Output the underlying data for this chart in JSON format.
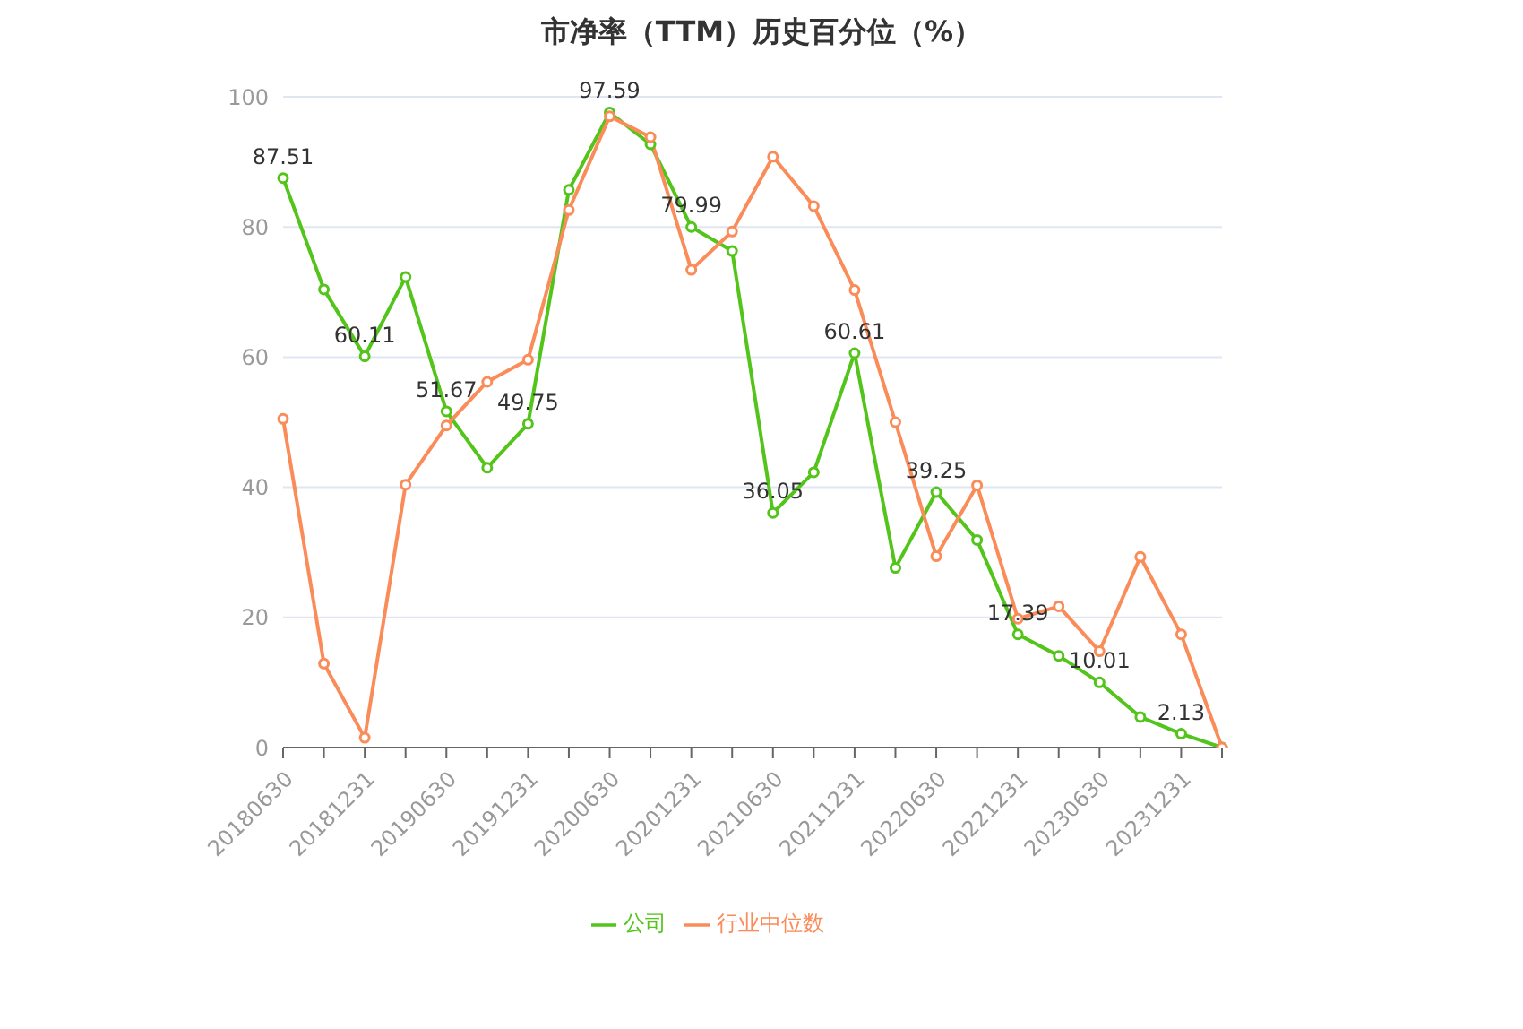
{
  "chart_data": {
    "type": "line",
    "title": "市净率（TTM）历史百分位（%）",
    "categories": [
      "20180630",
      null,
      "20181231",
      null,
      "20190630",
      null,
      "20191231",
      null,
      "20200630",
      null,
      "20201231",
      null,
      "20210630",
      null,
      "20211231",
      null,
      "20220630",
      null,
      "20221231",
      null,
      "20230630",
      null,
      "20231231",
      null
    ],
    "series": [
      {
        "name": "公司",
        "color": "#52c41a",
        "values": [
          87.51,
          70.4,
          60.11,
          72.3,
          51.67,
          43.0,
          49.75,
          85.7,
          97.59,
          92.7,
          79.99,
          76.3,
          36.05,
          42.3,
          60.61,
          27.6,
          39.25,
          31.9,
          17.39,
          14.1,
          10.01,
          4.7,
          2.13,
          0
        ],
        "value_labels": [
          "87.51",
          null,
          "60.11",
          null,
          "51.67",
          null,
          "49.75",
          null,
          "97.59",
          null,
          "79.99",
          null,
          "36.05",
          null,
          "60.61",
          null,
          "39.25",
          null,
          "17.39",
          null,
          "10.01",
          null,
          "2.13",
          null
        ]
      },
      {
        "name": "行业中位数",
        "color": "#fa8c5a",
        "values": [
          50.5,
          12.9,
          1.5,
          40.4,
          49.5,
          56.2,
          59.6,
          82.6,
          97.0,
          93.8,
          73.4,
          79.3,
          90.8,
          83.2,
          70.3,
          50.0,
          29.4,
          40.3,
          19.8,
          21.7,
          14.8,
          29.3,
          17.4,
          0
        ]
      }
    ],
    "ylim": [
      0,
      100
    ],
    "yticks": [
      0,
      20,
      40,
      60,
      80,
      100
    ],
    "grid": "y",
    "legend": "bottom",
    "marker": "circle",
    "line_style": "solid"
  }
}
